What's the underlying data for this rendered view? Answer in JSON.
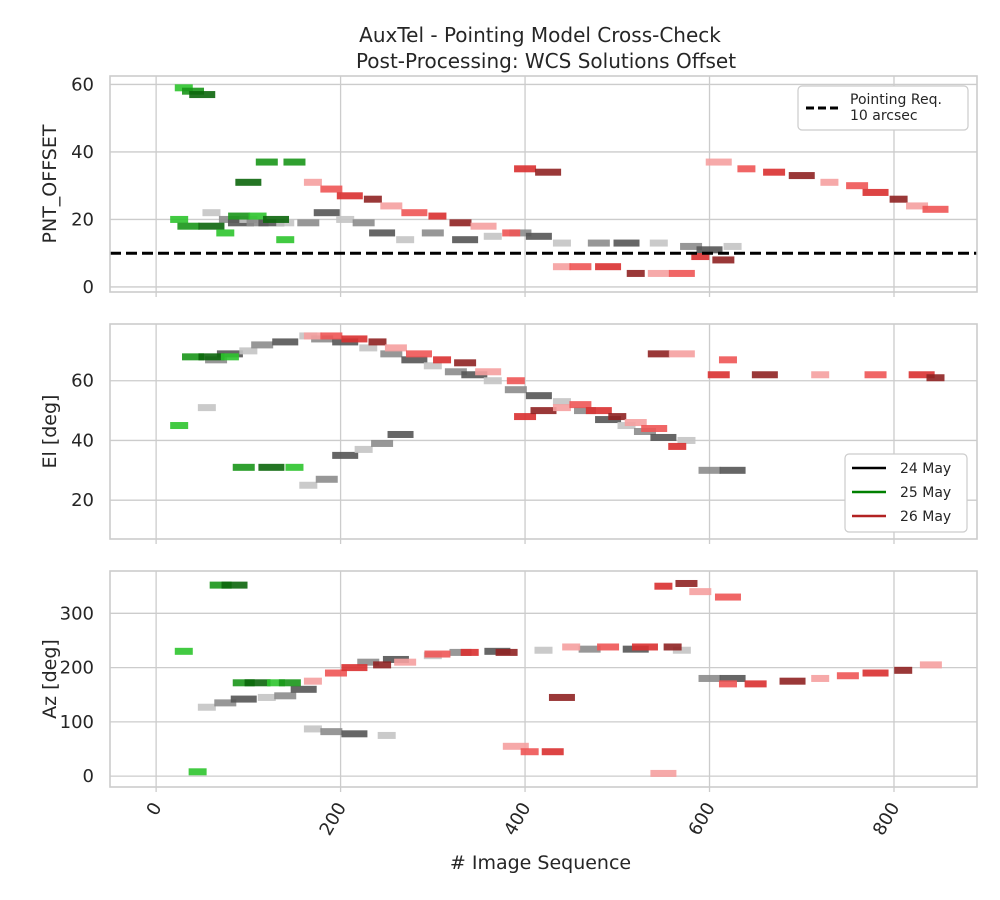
{
  "colors": {
    "background": "#ffffff",
    "grid": "#cccccc",
    "frame": "#cccccc",
    "text": "#262626",
    "reference_line": "#000000",
    "day_24_may": [
      "#c4c4c4",
      "#8c8c8c",
      "#555555"
    ],
    "day_25_may": [
      "#2ec42e",
      "#1a961a",
      "#0c660c"
    ],
    "day_26_may": [
      "#f5a0a0",
      "#ee5555",
      "#d93030",
      "#8f2222"
    ]
  },
  "chart_data": [
    {
      "type": "line",
      "title": "AuxTel - Pointing Model Cross-Check",
      "subtitle": "Post-Processing: WCS Solutions Offset",
      "ylabel": "PNT_OFFSET",
      "xlim": [
        -50,
        890
      ],
      "ylim": [
        -1.5,
        62.5
      ],
      "yticks": [
        "0",
        "20",
        "40",
        "60"
      ],
      "grid": true,
      "reference_line": {
        "y": 10,
        "style": "dashed"
      },
      "legend": {
        "position": "top-right",
        "entries": [
          "Pointing Req.\n 10 arcsec"
        ]
      },
      "series": [
        {
          "name": "24 May",
          "points": [
            [
              60,
              22
            ],
            [
              80,
              20
            ],
            [
              92,
              19
            ],
            [
              100,
              20
            ],
            [
              110,
              19
            ],
            [
              125,
              19
            ],
            [
              140,
              19
            ],
            [
              165,
              19
            ],
            [
              185,
              22
            ],
            [
              205,
              20
            ],
            [
              225,
              19
            ],
            [
              245,
              16
            ],
            [
              270,
              14
            ],
            [
              300,
              16
            ],
            [
              335,
              14
            ],
            [
              365,
              15
            ],
            [
              395,
              16
            ],
            [
              415,
              15
            ],
            [
              440,
              13
            ],
            [
              480,
              13
            ],
            [
              510,
              13
            ],
            [
              545,
              13
            ],
            [
              580,
              12
            ],
            [
              600,
              11
            ],
            [
              625,
              12
            ]
          ]
        },
        {
          "name": "25 May",
          "points": [
            [
              30,
              59
            ],
            [
              40,
              58
            ],
            [
              50,
              57
            ],
            [
              25,
              20
            ],
            [
              35,
              18
            ],
            [
              60,
              18
            ],
            [
              75,
              16
            ],
            [
              90,
              21
            ],
            [
              100,
              31
            ],
            [
              110,
              21
            ],
            [
              120,
              37
            ],
            [
              130,
              20
            ],
            [
              140,
              14
            ],
            [
              150,
              37
            ]
          ]
        },
        {
          "name": "26 May",
          "points": [
            [
              170,
              31
            ],
            [
              190,
              29
            ],
            [
              210,
              27
            ],
            [
              235,
              26
            ],
            [
              255,
              24
            ],
            [
              280,
              22
            ],
            [
              305,
              21
            ],
            [
              330,
              19
            ],
            [
              355,
              18
            ],
            [
              385,
              16
            ],
            [
              400,
              35
            ],
            [
              425,
              34
            ],
            [
              440,
              6
            ],
            [
              460,
              6
            ],
            [
              490,
              6
            ],
            [
              520,
              4
            ],
            [
              545,
              4
            ],
            [
              570,
              4
            ],
            [
              590,
              9
            ],
            [
              615,
              8
            ],
            [
              610,
              37
            ],
            [
              640,
              35
            ],
            [
              670,
              34
            ],
            [
              700,
              33
            ],
            [
              730,
              31
            ],
            [
              760,
              30
            ],
            [
              780,
              28
            ],
            [
              805,
              26
            ],
            [
              825,
              24
            ],
            [
              845,
              23
            ]
          ]
        }
      ]
    },
    {
      "type": "line",
      "ylabel": "El [deg]",
      "xlim": [
        -50,
        890
      ],
      "ylim": [
        7,
        79
      ],
      "yticks": [
        "20",
        "40",
        "60"
      ],
      "grid": true,
      "legend": {
        "position": "lower-right",
        "entries": [
          "24 May",
          "25 May",
          "26 May"
        ]
      },
      "series": [
        {
          "name": "24 May",
          "points": [
            [
              55,
              51
            ],
            [
              65,
              67
            ],
            [
              80,
              69
            ],
            [
              100,
              70
            ],
            [
              115,
              72
            ],
            [
              140,
              73
            ],
            [
              165,
              75
            ],
            [
              180,
              74
            ],
            [
              205,
              73
            ],
            [
              230,
              71
            ],
            [
              255,
              69
            ],
            [
              280,
              67
            ],
            [
              300,
              65
            ],
            [
              325,
              63
            ],
            [
              345,
              62
            ],
            [
              365,
              60
            ],
            [
              390,
              57
            ],
            [
              415,
              55
            ],
            [
              440,
              53
            ],
            [
              465,
              50
            ],
            [
              490,
              47
            ],
            [
              510,
              45
            ],
            [
              530,
              43
            ],
            [
              550,
              41
            ],
            [
              575,
              40
            ],
            [
              600,
              30
            ],
            [
              625,
              30
            ],
            [
              165,
              25
            ],
            [
              185,
              27
            ],
            [
              205,
              35
            ],
            [
              225,
              37
            ],
            [
              245,
              39
            ],
            [
              265,
              42
            ]
          ]
        },
        {
          "name": "25 May",
          "points": [
            [
              25,
              45
            ],
            [
              40,
              68
            ],
            [
              60,
              68
            ],
            [
              80,
              68
            ],
            [
              95,
              31
            ],
            [
              125,
              31
            ],
            [
              150,
              31
            ]
          ]
        },
        {
          "name": "26 May",
          "points": [
            [
              170,
              75
            ],
            [
              190,
              75
            ],
            [
              215,
              74
            ],
            [
              240,
              73
            ],
            [
              260,
              71
            ],
            [
              285,
              69
            ],
            [
              310,
              67
            ],
            [
              335,
              66
            ],
            [
              360,
              63
            ],
            [
              390,
              60
            ],
            [
              400,
              48
            ],
            [
              420,
              50
            ],
            [
              440,
              51
            ],
            [
              460,
              52
            ],
            [
              480,
              50
            ],
            [
              500,
              48
            ],
            [
              520,
              46
            ],
            [
              540,
              44
            ],
            [
              565,
              38
            ],
            [
              545,
              69
            ],
            [
              570,
              69
            ],
            [
              620,
              67
            ],
            [
              610,
              62
            ],
            [
              660,
              62
            ],
            [
              720,
              62
            ],
            [
              780,
              62
            ],
            [
              830,
              62
            ],
            [
              845,
              61
            ]
          ]
        }
      ]
    },
    {
      "type": "line",
      "ylabel": "Az [deg]",
      "xlabel": "# Image Sequence",
      "xlim": [
        -50,
        890
      ],
      "ylim": [
        -20,
        378
      ],
      "xticks": [
        "0",
        "200",
        "400",
        "600",
        "800"
      ],
      "yticks": [
        "0",
        "100",
        "200",
        "300"
      ],
      "grid": true,
      "series": [
        {
          "name": "24 May",
          "points": [
            [
              55,
              127
            ],
            [
              75,
              135
            ],
            [
              95,
              142
            ],
            [
              120,
              145
            ],
            [
              140,
              148
            ],
            [
              160,
              160
            ],
            [
              170,
              87
            ],
            [
              190,
              82
            ],
            [
              215,
              78
            ],
            [
              250,
              75
            ],
            [
              230,
              210
            ],
            [
              260,
              215
            ],
            [
              300,
              222
            ],
            [
              330,
              228
            ],
            [
              370,
              230
            ],
            [
              420,
              232
            ],
            [
              470,
              234
            ],
            [
              520,
              234
            ],
            [
              570,
              232
            ],
            [
              600,
              180
            ],
            [
              625,
              180
            ]
          ]
        },
        {
          "name": "25 May",
          "points": [
            [
              30,
              230
            ],
            [
              70,
              352
            ],
            [
              85,
              352
            ],
            [
              45,
              8
            ],
            [
              95,
              172
            ],
            [
              110,
              172
            ],
            [
              130,
              172
            ],
            [
              145,
              172
            ]
          ]
        },
        {
          "name": "26 May",
          "points": [
            [
              170,
              175
            ],
            [
              195,
              190
            ],
            [
              215,
              200
            ],
            [
              245,
              205
            ],
            [
              270,
              210
            ],
            [
              305,
              225
            ],
            [
              340,
              228
            ],
            [
              380,
              228
            ],
            [
              390,
              55
            ],
            [
              405,
              45
            ],
            [
              430,
              45
            ],
            [
              440,
              145
            ],
            [
              450,
              238
            ],
            [
              490,
              238
            ],
            [
              530,
              238
            ],
            [
              560,
              238
            ],
            [
              590,
              340
            ],
            [
              620,
              330
            ],
            [
              550,
              350
            ],
            [
              575,
              355
            ],
            [
              550,
              5
            ],
            [
              620,
              170
            ],
            [
              650,
              170
            ],
            [
              690,
              175
            ],
            [
              720,
              180
            ],
            [
              750,
              185
            ],
            [
              780,
              190
            ],
            [
              810,
              195
            ],
            [
              840,
              205
            ]
          ]
        }
      ]
    }
  ]
}
